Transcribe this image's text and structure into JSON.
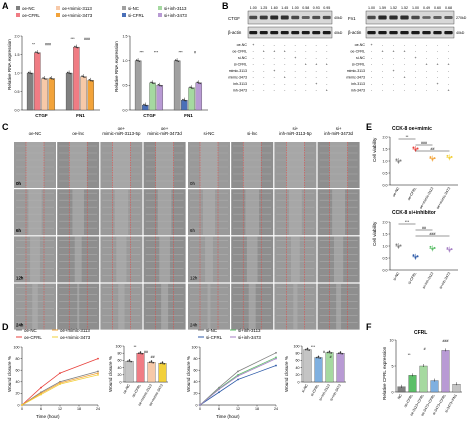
{
  "panels": {
    "A": "A",
    "B": "B",
    "C": "C",
    "D": "D",
    "E": "E",
    "F": "F"
  },
  "colors": {
    "red": "#e8413c",
    "pink": "#f07c84",
    "orange": "#f2a33a",
    "yellow": "#f2d03a",
    "green": "#5cbf68",
    "gray": "#808080",
    "blue": "#2d5aa8",
    "purple": "#a57fc4",
    "lightblue": "#7fb0e0"
  },
  "A": {
    "left_legend": [
      "oe-NC",
      "oe-CFRL",
      "oe+mimic-3113",
      "oe+mimic-3473"
    ],
    "right_legend": [
      "si-NC",
      "si-CFRL",
      "si+inh-3113",
      "si+inh-3473"
    ],
    "ylabel": "Relative RNA expression",
    "left_sig": [
      "**",
      "###",
      "***",
      "###"
    ],
    "right_sig": [
      "***",
      "***",
      "***",
      "#"
    ],
    "left_yticks": [
      "0.0",
      "0.5",
      "1.0",
      "1.5",
      "2.0"
    ],
    "right_yticks": [
      "0.0",
      "0.5",
      "1.0",
      "1.5"
    ],
    "chart_data": [
      {
        "type": "bar",
        "categories": [
          "CTGF",
          "FN1"
        ],
        "series": [
          {
            "name": "oe-NC",
            "values": [
              1.0,
              1.0
            ]
          },
          {
            "name": "oe-CFRL",
            "values": [
              1.55,
              1.7
            ]
          },
          {
            "name": "oe+mimic-3113",
            "values": [
              0.85,
              0.9
            ]
          },
          {
            "name": "oe+mimic-3473",
            "values": [
              0.85,
              0.8
            ]
          }
        ],
        "ylim": [
          0,
          2.0
        ]
      },
      {
        "type": "bar",
        "categories": [
          "CTGF",
          "FN1"
        ],
        "series": [
          {
            "name": "si-NC",
            "values": [
              1.0,
              1.0
            ]
          },
          {
            "name": "si-CFRL",
            "values": [
              0.1,
              0.2
            ]
          },
          {
            "name": "si+inh-3113",
            "values": [
              0.55,
              0.45
            ]
          },
          {
            "name": "si+inh-3473",
            "values": [
              0.5,
              0.55
            ]
          }
        ],
        "ylim": [
          0,
          1.5
        ]
      }
    ]
  },
  "B": {
    "left_label": "CTGF",
    "right_label": "Fn1",
    "actin": "β-actin",
    "left_kd": "40kD",
    "right_kd": "270kD",
    "actin_kd": "40kD",
    "left_values": [
      "1.00",
      "1.25",
      "1.60",
      "1.45",
      "1.00",
      "0.58",
      "0.93",
      "0.95"
    ],
    "right_values": [
      "1.00",
      "1.59",
      "1.52",
      "1.52",
      "1.00",
      "0.49",
      "0.60",
      "0.68"
    ],
    "rows": [
      "oe-NC",
      "oe-CFRL",
      "si-NC",
      "si-CFRL",
      "mimic-3113",
      "mimic-3473",
      "inh-3113",
      "inh-3473"
    ]
  },
  "C": {
    "left_cols": [
      "oe-NC",
      "oe-lnc",
      "oe+\nmimic-miR-3113-5p",
      "oe+\nmimic-miR-3473d"
    ],
    "right_cols": [
      "si-NC",
      "si-lnc",
      "si+\ninh-miR-3113-5p",
      "si+\ninh-miR-3473d"
    ],
    "rows": [
      "0h",
      "6h",
      "12h",
      "24h"
    ]
  },
  "E": {
    "title1": "CCK-8 oe+mimic",
    "title2": "CCK-8 si+inhibitor",
    "ylabel": "Cell viability",
    "groups1": [
      "oe-NC",
      "oe-CFRL",
      "oe+mimic-3113",
      "oe+mimic-3473"
    ],
    "groups2": [
      "si-NC",
      "si-CFRL",
      "si+inh-3113",
      "si+inh-3473"
    ],
    "sig1": [
      "**",
      "###",
      "##"
    ],
    "sig2": [
      "***",
      "##",
      "###"
    ],
    "chart_data": [
      {
        "type": "scatter",
        "categories": [
          "oe-NC",
          "oe-CFRL",
          "oe+mimic-3113",
          "oe+mimic-3473"
        ],
        "values": [
          1.0,
          1.5,
          1.1,
          1.15
        ]
      },
      {
        "type": "scatter",
        "categories": [
          "si-NC",
          "si-CFRL",
          "si+inh-3113",
          "si+inh-3473"
        ],
        "values": [
          1.0,
          0.55,
          0.9,
          0.85
        ]
      }
    ]
  },
  "D": {
    "left_legend": [
      "oe-NC",
      "oe-CFRL",
      "oe+mimic-3113",
      "oe+mimic-3473"
    ],
    "right_legend": [
      "si-NC",
      "si-CFRL",
      "si+inh-3113",
      "si+inh-3473"
    ],
    "ylabel": "Wound closure %",
    "xlabel": "Time (hour)",
    "xticks": [
      "0",
      "6",
      "12",
      "18",
      "24"
    ],
    "yticks": [
      "0",
      "20",
      "40",
      "60",
      "80",
      "100"
    ],
    "bar_sig1": [
      "**",
      "##",
      "##"
    ],
    "bar_sig2": [
      "***",
      "#",
      "#"
    ],
    "chart_data": [
      {
        "type": "line",
        "x": [
          0,
          6,
          12,
          24
        ],
        "series": [
          {
            "name": "oe-NC",
            "values": [
              0,
              22,
              40,
              58
            ]
          },
          {
            "name": "oe-CFRL",
            "values": [
              0,
              30,
              55,
              80
            ]
          },
          {
            "name": "oe+mimic-3113",
            "values": [
              0,
              20,
              38,
              55
            ]
          },
          {
            "name": "oe+mimic-3473",
            "values": [
              0,
              18,
              36,
              52
            ]
          }
        ]
      },
      {
        "type": "bar",
        "categories": [
          "oe-NC",
          "oe-CFRL",
          "oe+mimic-3113",
          "oe+mimic-3473"
        ],
        "values": [
          58,
          80,
          55,
          52
        ],
        "ylim": [
          0,
          100
        ]
      },
      {
        "type": "line",
        "x": [
          0,
          6,
          12,
          24
        ],
        "series": [
          {
            "name": "si-NC",
            "values": [
              0,
              30,
              58,
              90
            ]
          },
          {
            "name": "si-CFRL",
            "values": [
              0,
              22,
              44,
              68
            ]
          },
          {
            "name": "si+inh-3113",
            "values": [
              0,
              28,
              52,
              82
            ]
          },
          {
            "name": "si+inh-3473",
            "values": [
              0,
              27,
              50,
              80
            ]
          }
        ]
      },
      {
        "type": "bar",
        "categories": [
          "si-NC",
          "si-CFRL",
          "si+inh-3113",
          "si+inh-3473"
        ],
        "values": [
          90,
          68,
          82,
          80
        ],
        "ylim": [
          0,
          100
        ]
      }
    ]
  },
  "F": {
    "title": "CFRL",
    "ylabel": "Relative CFRL expression",
    "groups": [
      "NC",
      "oe-CFRL",
      "oe-3113+CFRL",
      "oe-3473+CFRL",
      "si-3473+CFRL",
      "si-3473+FN1"
    ],
    "sig": [
      "**",
      "#",
      "###"
    ],
    "chart_data": {
      "type": "bar",
      "categories": [
        "NC",
        "oe-CFRL",
        "oe-3113+CFRL",
        "oe-3473+CFRL",
        "si-3473+CFRL",
        "si-3473+FN1"
      ],
      "values": [
        1.0,
        3.2,
        5.0,
        2.2,
        8.0,
        1.5
      ],
      "ylim": [
        0,
        10
      ]
    }
  }
}
